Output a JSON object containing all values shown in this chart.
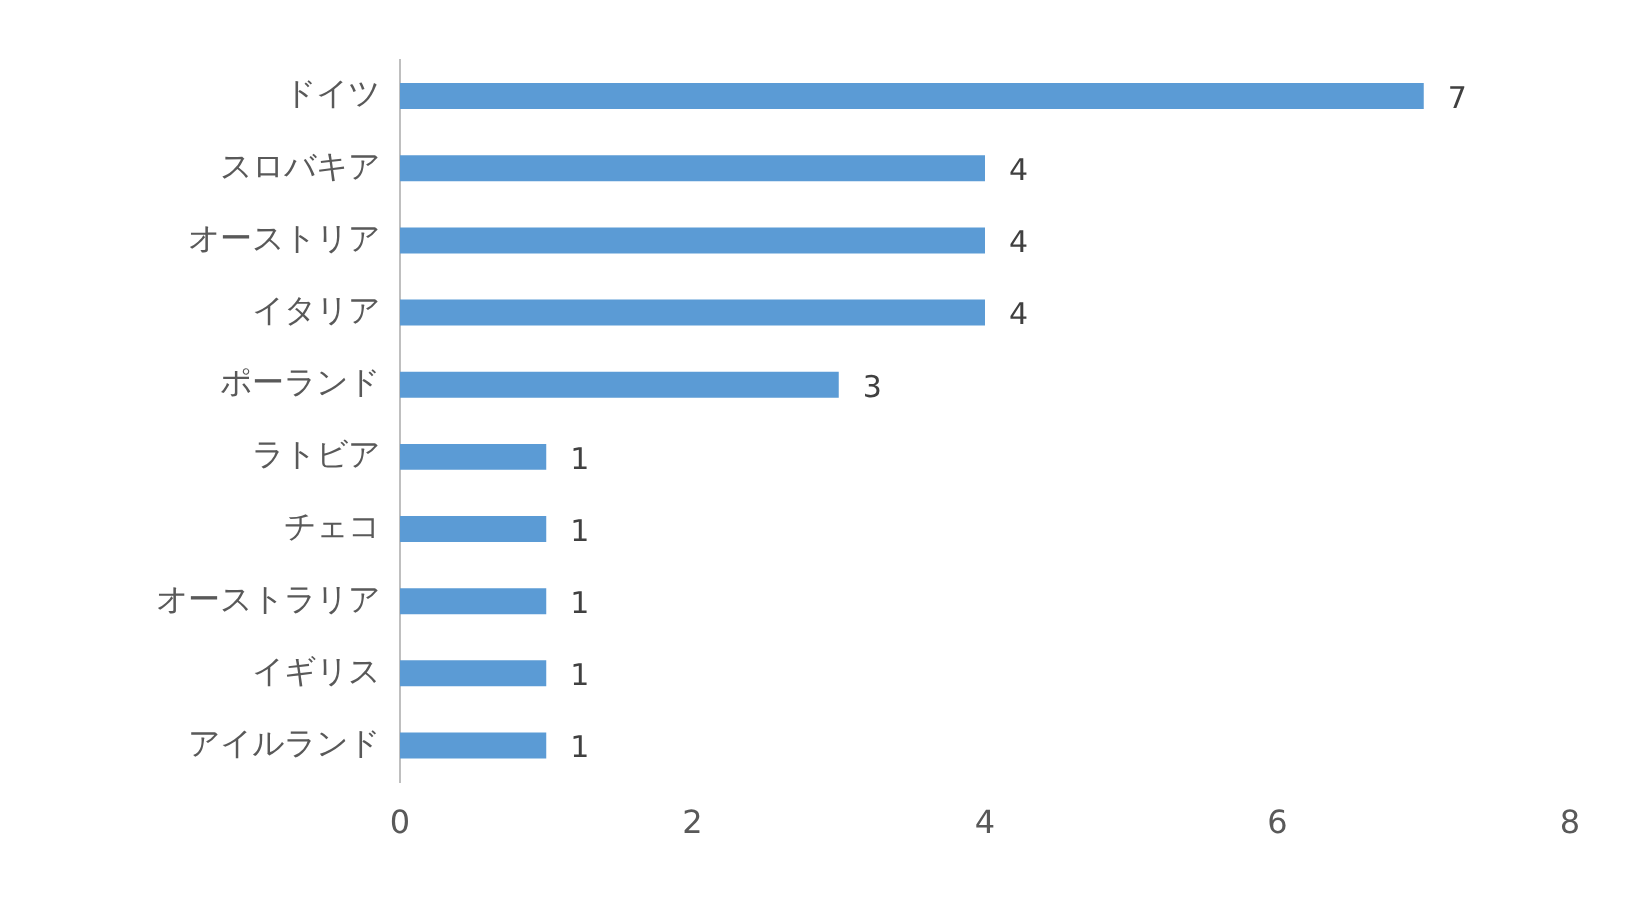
{
  "chart_data": {
    "type": "bar",
    "orientation": "horizontal",
    "categories": [
      "ドイツ",
      "スロバキア",
      "オーストリア",
      "イタリア",
      "ポーランド",
      "ラトビア",
      "チェコ",
      "オーストラリア",
      "イギリス",
      "アイルランド"
    ],
    "values": [
      7,
      4,
      4,
      4,
      3,
      1,
      1,
      1,
      1,
      1
    ],
    "color": "#5b9bd5",
    "xlim": [
      0,
      8
    ],
    "xticks": [
      0,
      2,
      4,
      6,
      8
    ],
    "grid": false,
    "legend": false,
    "data_labels": true
  }
}
